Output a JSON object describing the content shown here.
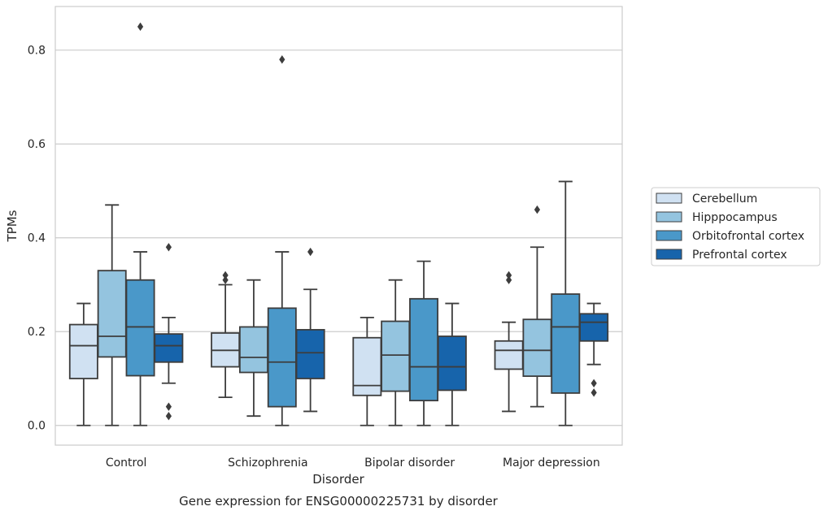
{
  "chart_data": {
    "type": "box",
    "title": "Gene expression for ENSG00000225731 by disorder",
    "xlabel": "Disorder",
    "ylabel": "TPMs",
    "ylim": [
      -0.042,
      0.893
    ],
    "yticks": [
      "0.0",
      "0.2",
      "0.4",
      "0.6",
      "0.8"
    ],
    "grid": true,
    "legend_position": "right",
    "categories": [
      "Control",
      "Schizophrenia",
      "Bipolar disorder",
      "Major depression"
    ],
    "series": [
      {
        "name": "Cerebellum",
        "color": "#d0e1f2",
        "boxes": [
          {
            "whislo": 0.0,
            "q1": 0.1,
            "med": 0.17,
            "q3": 0.215,
            "whishi": 0.26,
            "fliers": []
          },
          {
            "whislo": 0.06,
            "q1": 0.125,
            "med": 0.16,
            "q3": 0.197,
            "whishi": 0.3,
            "fliers": [
              0.31,
              0.32
            ]
          },
          {
            "whislo": 0.0,
            "q1": 0.064,
            "med": 0.085,
            "q3": 0.187,
            "whishi": 0.23,
            "fliers": []
          },
          {
            "whislo": 0.03,
            "q1": 0.12,
            "med": 0.16,
            "q3": 0.18,
            "whishi": 0.22,
            "fliers": [
              0.31,
              0.32
            ]
          }
        ]
      },
      {
        "name": "Hipppocampus",
        "color": "#94c4df",
        "boxes": [
          {
            "whislo": 0.0,
            "q1": 0.146,
            "med": 0.19,
            "q3": 0.33,
            "whishi": 0.47,
            "fliers": []
          },
          {
            "whislo": 0.02,
            "q1": 0.113,
            "med": 0.145,
            "q3": 0.21,
            "whishi": 0.31,
            "fliers": []
          },
          {
            "whislo": 0.0,
            "q1": 0.073,
            "med": 0.15,
            "q3": 0.222,
            "whishi": 0.31,
            "fliers": []
          },
          {
            "whislo": 0.04,
            "q1": 0.105,
            "med": 0.16,
            "q3": 0.226,
            "whishi": 0.38,
            "fliers": [
              0.46
            ]
          }
        ]
      },
      {
        "name": "Orbitofrontal cortex",
        "color": "#4a98c9",
        "boxes": [
          {
            "whislo": 0.0,
            "q1": 0.106,
            "med": 0.21,
            "q3": 0.31,
            "whishi": 0.37,
            "fliers": [
              0.85
            ]
          },
          {
            "whislo": 0.0,
            "q1": 0.04,
            "med": 0.135,
            "q3": 0.25,
            "whishi": 0.37,
            "fliers": [
              0.78
            ]
          },
          {
            "whislo": 0.0,
            "q1": 0.053,
            "med": 0.125,
            "q3": 0.27,
            "whishi": 0.35,
            "fliers": []
          },
          {
            "whislo": 0.0,
            "q1": 0.069,
            "med": 0.21,
            "q3": 0.28,
            "whishi": 0.52,
            "fliers": []
          }
        ]
      },
      {
        "name": "Prefrontal cortex",
        "color": "#1764ab",
        "boxes": [
          {
            "whislo": 0.09,
            "q1": 0.135,
            "med": 0.17,
            "q3": 0.195,
            "whishi": 0.23,
            "fliers": [
              0.38,
              0.04,
              0.02
            ]
          },
          {
            "whislo": 0.03,
            "q1": 0.1,
            "med": 0.155,
            "q3": 0.204,
            "whishi": 0.29,
            "fliers": [
              0.37
            ]
          },
          {
            "whislo": 0.0,
            "q1": 0.075,
            "med": 0.125,
            "q3": 0.19,
            "whishi": 0.26,
            "fliers": []
          },
          {
            "whislo": 0.13,
            "q1": 0.18,
            "med": 0.22,
            "q3": 0.238,
            "whishi": 0.26,
            "fliers": [
              0.09,
              0.07
            ]
          }
        ]
      }
    ]
  }
}
